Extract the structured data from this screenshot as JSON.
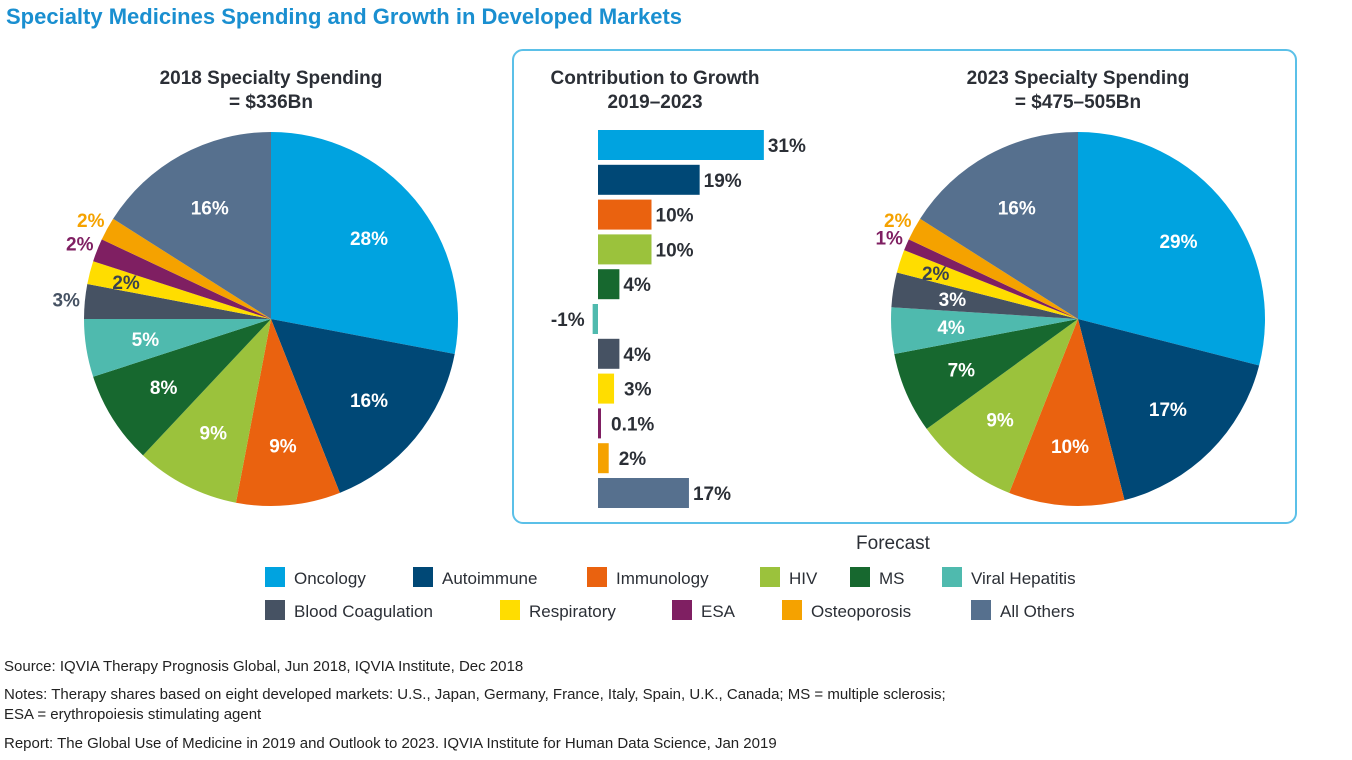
{
  "title": "Specialty Medicines Spending and Growth in Developed Markets",
  "forecast_label": "Forecast",
  "footer": {
    "source": "Source: IQVIA Therapy Prognosis Global, Jun 2018, IQVIA Institute, Dec 2018",
    "notes_line1": "Notes: Therapy shares based on eight developed markets: U.S., Japan, Germany, France, Italy, Spain, U.K., Canada; MS = multiple sclerosis;",
    "notes_line2": "ESA = erythropoiesis stimulating agent",
    "report": "Report: The Global Use of Medicine in 2019 and Outlook to 2023. IQVIA Institute for Human Data Science, Jan 2019"
  },
  "categories": [
    "Oncology",
    "Autoimmune",
    "Immunology",
    "HIV",
    "MS",
    "Viral Hepatitis",
    "Blood Coagulation",
    "Respiratory",
    "ESA",
    "Osteoporosis",
    "All Others"
  ],
  "colors": [
    "#00A3E0",
    "#004876",
    "#EA620F",
    "#9BC23C",
    "#17682F",
    "#4FBAAE",
    "#465263",
    "#FFDD00",
    "#7F1F62",
    "#F5A200",
    "#56708E"
  ],
  "chart_data": [
    {
      "type": "pie",
      "title_line1": "2018 Specialty Spending",
      "title_line2": "= $336Bn",
      "categories": [
        "Oncology",
        "Autoimmune",
        "Immunology",
        "HIV",
        "MS",
        "Viral Hepatitis",
        "Blood Coagulation",
        "Respiratory",
        "ESA",
        "Osteoporosis",
        "All Others"
      ],
      "values": [
        28,
        16,
        9,
        9,
        8,
        5,
        3,
        2,
        2,
        2,
        16
      ],
      "labels": [
        "28%",
        "16%",
        "9%",
        "9%",
        "8%",
        "5%",
        "3%",
        "2%",
        "2%",
        "2%",
        "16%"
      ],
      "label_style": [
        "inside",
        "inside",
        "inside",
        "inside",
        "inside",
        "inside",
        "outside",
        "inside-dark",
        "outside",
        "outside",
        "inside"
      ]
    },
    {
      "type": "bar",
      "orientation": "horizontal",
      "title_line1": "Contribution to Growth",
      "title_line2": "2019–2023",
      "categories": [
        "Oncology",
        "Autoimmune",
        "Immunology",
        "HIV",
        "MS",
        "Viral Hepatitis",
        "Blood Coagulation",
        "Respiratory",
        "ESA",
        "Osteoporosis",
        "All Others"
      ],
      "values": [
        31,
        19,
        10,
        10,
        4,
        -1,
        4,
        3,
        0.1,
        2,
        17
      ],
      "labels": [
        "31%",
        "19%",
        "10%",
        "10%",
        "4%",
        "-1%",
        "4%",
        "3%",
        "0.1%",
        "2%",
        "17%"
      ]
    },
    {
      "type": "pie",
      "title_line1": "2023 Specialty Spending",
      "title_line2": "= $475–505Bn",
      "categories": [
        "Oncology",
        "Autoimmune",
        "Immunology",
        "HIV",
        "MS",
        "Viral Hepatitis",
        "Blood Coagulation",
        "Respiratory",
        "ESA",
        "Osteoporosis",
        "All Others"
      ],
      "values": [
        29,
        17,
        10,
        9,
        7,
        4,
        3,
        2,
        1,
        2,
        16
      ],
      "labels": [
        "29%",
        "17%",
        "10%",
        "9%",
        "7%",
        "4%",
        "3%",
        "2%",
        "1%",
        "2%",
        "16%"
      ],
      "label_style": [
        "inside",
        "inside",
        "inside",
        "inside",
        "inside",
        "inside",
        "inside",
        "inside-dark",
        "outside",
        "outside",
        "inside"
      ]
    }
  ],
  "legend": {
    "position": "bottom",
    "items": [
      "Oncology",
      "Autoimmune",
      "Immunology",
      "HIV",
      "MS",
      "Viral Hepatitis",
      "Blood Coagulation",
      "Respiratory",
      "ESA",
      "Osteoporosis",
      "All Others"
    ]
  }
}
